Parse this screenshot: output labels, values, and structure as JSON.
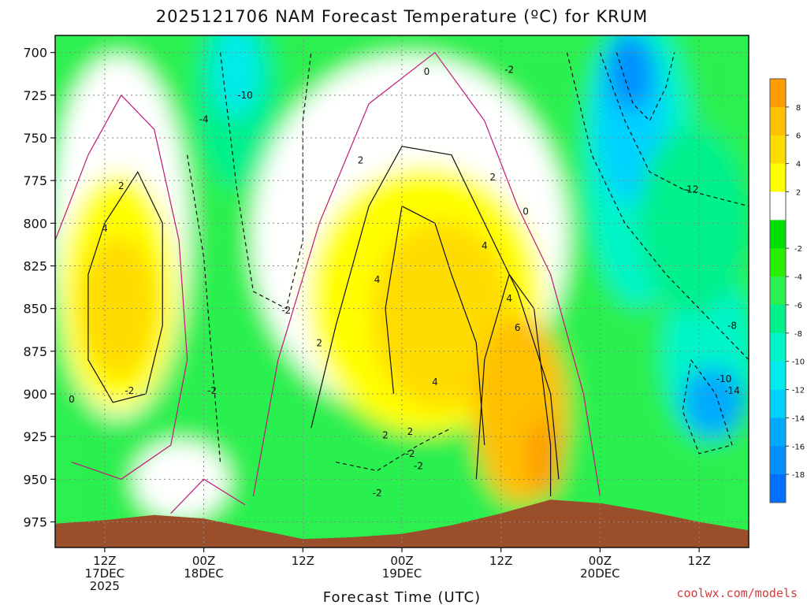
{
  "chart_data": {
    "type": "contour",
    "title": "2025121706 NAM Forecast Temperature (ºC) for KRUM",
    "xlabel": "Forecast Time (UTC)",
    "ylabel": "",
    "credit": "coolwx.com/models",
    "y_ticks": [
      "700",
      "725",
      "750",
      "775",
      "800",
      "825",
      "850",
      "875",
      "900",
      "925",
      "950",
      "975"
    ],
    "y_values": [
      700,
      725,
      750,
      775,
      800,
      825,
      850,
      875,
      900,
      925,
      950,
      975
    ],
    "ylim": [
      690,
      990
    ],
    "y_inverted": true,
    "x_ticks": [
      {
        "hour": 12,
        "lines": [
          "12Z",
          "17DEC",
          "2025"
        ]
      },
      {
        "hour": 24,
        "lines": [
          "00Z",
          "18DEC"
        ]
      },
      {
        "hour": 36,
        "lines": [
          "12Z"
        ]
      },
      {
        "hour": 48,
        "lines": [
          "00Z",
          "19DEC"
        ]
      },
      {
        "hour": 60,
        "lines": [
          "12Z"
        ]
      },
      {
        "hour": 72,
        "lines": [
          "00Z",
          "20DEC"
        ]
      },
      {
        "hour": 84,
        "lines": [
          "12Z"
        ]
      }
    ],
    "xlim": [
      6,
      90
    ],
    "colorbar": {
      "ticks": [
        "8",
        "6",
        "4",
        "2",
        "-2",
        "-4",
        "-6",
        "-8",
        "-10",
        "-12",
        "-14",
        "-16",
        "-18"
      ],
      "levels": [
        10,
        8,
        6,
        4,
        2,
        0,
        -2,
        -4,
        -6,
        -8,
        -10,
        -12,
        -14,
        -16,
        -18,
        -20
      ],
      "colors": [
        "#ff9d00",
        "#ffc000",
        "#ffdc00",
        "#ffff00",
        "#ffffff",
        "#00e000",
        "#29ee00",
        "#2cf050",
        "#00f08c",
        "#00f5c8",
        "#00ebeb",
        "#00d2ff",
        "#00aaff",
        "#0090ff",
        "#0070ff"
      ]
    },
    "contour_labels": [
      "0",
      "-2",
      "2",
      "-10",
      "-4",
      "-2",
      "2",
      "4",
      "2",
      "0",
      "4",
      "4",
      "-2",
      "2",
      "4",
      "6",
      "-12",
      "-8",
      "-10",
      "-14",
      "-2",
      "-2",
      "2",
      "0",
      "-2",
      "2",
      "4",
      "-2"
    ],
    "terrain_color": "#9a4f2a"
  }
}
